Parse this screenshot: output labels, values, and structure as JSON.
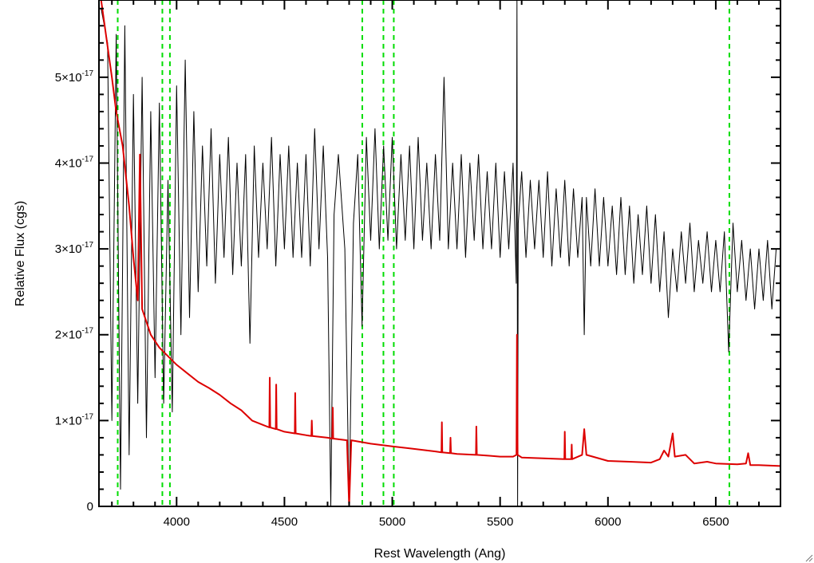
{
  "chart_data": {
    "type": "line",
    "xlabel": "Rest Wavelength (Ang)",
    "ylabel": "Relative Flux (cgs)",
    "xlim": [
      3640,
      6800
    ],
    "ylim": [
      0,
      5.9e-17
    ],
    "x_ticks": [
      {
        "value": 4000,
        "label": "4000"
      },
      {
        "value": 4500,
        "label": "4500"
      },
      {
        "value": 5000,
        "label": "5000"
      },
      {
        "value": 5500,
        "label": "5500"
      },
      {
        "value": 6000,
        "label": "6000"
      },
      {
        "value": 6500,
        "label": "6500"
      }
    ],
    "y_ticks": [
      {
        "value": 0,
        "mantissa": "0",
        "exponent": ""
      },
      {
        "value": 1e-17,
        "mantissa": "1×10",
        "exponent": "-17"
      },
      {
        "value": 2e-17,
        "mantissa": "2×10",
        "exponent": "-17"
      },
      {
        "value": 3e-17,
        "mantissa": "3×10",
        "exponent": "-17"
      },
      {
        "value": 4e-17,
        "mantissa": "4×10",
        "exponent": "-17"
      },
      {
        "value": 5e-17,
        "mantissa": "5×10",
        "exponent": "-17"
      }
    ],
    "reference_lines": {
      "color": "#00dd00",
      "style": "dashed",
      "x": [
        3727,
        3934,
        3969,
        4861,
        4959,
        5007,
        6563
      ]
    },
    "series": [
      {
        "color": "#000000",
        "points": [
          [
            3650,
            5.8e-17
          ],
          [
            3680,
            5.4e-17
          ],
          [
            3700,
            1e-17
          ],
          [
            3720,
            5.5e-17
          ],
          [
            3740,
            2e-18
          ],
          [
            3760,
            5.6e-17
          ],
          [
            3780,
            6e-18
          ],
          [
            3800,
            4.8e-17
          ],
          [
            3820,
            1.2e-17
          ],
          [
            3840,
            5e-17
          ],
          [
            3860,
            8e-18
          ],
          [
            3880,
            4.6e-17
          ],
          [
            3900,
            1.5e-17
          ],
          [
            3920,
            4.7e-17
          ],
          [
            3940,
            1.2e-17
          ],
          [
            3960,
            3.8e-17
          ],
          [
            3980,
            1.1e-17
          ],
          [
            4000,
            4.9e-17
          ],
          [
            4020,
            2e-17
          ],
          [
            4040,
            5.2e-17
          ],
          [
            4060,
            2.2e-17
          ],
          [
            4080,
            4.6e-17
          ],
          [
            4100,
            2.5e-17
          ],
          [
            4120,
            4.2e-17
          ],
          [
            4140,
            2.8e-17
          ],
          [
            4160,
            4.4e-17
          ],
          [
            4180,
            2.6e-17
          ],
          [
            4200,
            4.1e-17
          ],
          [
            4220,
            2.9e-17
          ],
          [
            4240,
            4.3e-17
          ],
          [
            4260,
            2.7e-17
          ],
          [
            4280,
            4e-17
          ],
          [
            4300,
            2.8e-17
          ],
          [
            4320,
            4.1e-17
          ],
          [
            4340,
            1.9e-17
          ],
          [
            4360,
            4.2e-17
          ],
          [
            4380,
            2.9e-17
          ],
          [
            4400,
            4e-17
          ],
          [
            4420,
            3e-17
          ],
          [
            4440,
            4.3e-17
          ],
          [
            4460,
            2.8e-17
          ],
          [
            4480,
            4.1e-17
          ],
          [
            4500,
            3e-17
          ],
          [
            4520,
            4.2e-17
          ],
          [
            4540,
            2.9e-17
          ],
          [
            4560,
            4e-17
          ],
          [
            4580,
            2.9e-17
          ],
          [
            4600,
            4.1e-17
          ],
          [
            4620,
            2.8e-17
          ],
          [
            4640,
            4.4e-17
          ],
          [
            4660,
            3e-17
          ],
          [
            4680,
            4.2e-17
          ],
          [
            4700,
            2.9e-17
          ],
          [
            4715,
            0.0
          ],
          [
            4730,
            3.4e-17
          ],
          [
            4750,
            4.1e-17
          ],
          [
            4780,
            3e-17
          ],
          [
            4800,
            0.0
          ],
          [
            4820,
            3.3e-17
          ],
          [
            4840,
            4.1e-17
          ],
          [
            4860,
            2.1e-17
          ],
          [
            4880,
            4.3e-17
          ],
          [
            4900,
            3.1e-17
          ],
          [
            4920,
            4.4e-17
          ],
          [
            4940,
            3e-17
          ],
          [
            4960,
            4.2e-17
          ],
          [
            4980,
            3.1e-17
          ],
          [
            5000,
            4.3e-17
          ],
          [
            5020,
            3e-17
          ],
          [
            5040,
            4.1e-17
          ],
          [
            5060,
            3.1e-17
          ],
          [
            5080,
            4.2e-17
          ],
          [
            5100,
            3e-17
          ],
          [
            5120,
            4.3e-17
          ],
          [
            5140,
            3.1e-17
          ],
          [
            5160,
            4e-17
          ],
          [
            5180,
            3e-17
          ],
          [
            5200,
            4.1e-17
          ],
          [
            5220,
            3.1e-17
          ],
          [
            5240,
            5e-17
          ],
          [
            5260,
            3e-17
          ],
          [
            5280,
            4e-17
          ],
          [
            5300,
            3e-17
          ],
          [
            5320,
            4.1e-17
          ],
          [
            5340,
            2.9e-17
          ],
          [
            5360,
            4e-17
          ],
          [
            5380,
            3.1e-17
          ],
          [
            5400,
            4.1e-17
          ],
          [
            5420,
            3e-17
          ],
          [
            5440,
            3.9e-17
          ],
          [
            5460,
            3e-17
          ],
          [
            5480,
            4e-17
          ],
          [
            5500,
            2.9e-17
          ],
          [
            5520,
            3.9e-17
          ],
          [
            5540,
            3e-17
          ],
          [
            5560,
            4e-17
          ],
          [
            5575,
            2.6e-17
          ],
          [
            5578,
            5.9e-17
          ],
          [
            5581,
            0.0
          ],
          [
            5584,
            3.3e-17
          ],
          [
            5600,
            3.9e-17
          ],
          [
            5620,
            2.9e-17
          ],
          [
            5640,
            3.8e-17
          ],
          [
            5660,
            3e-17
          ],
          [
            5680,
            3.8e-17
          ],
          [
            5700,
            2.9e-17
          ],
          [
            5720,
            3.9e-17
          ],
          [
            5740,
            2.8e-17
          ],
          [
            5760,
            3.7e-17
          ],
          [
            5780,
            2.9e-17
          ],
          [
            5800,
            3.8e-17
          ],
          [
            5820,
            2.8e-17
          ],
          [
            5840,
            3.7e-17
          ],
          [
            5860,
            2.9e-17
          ],
          [
            5880,
            3.6e-17
          ],
          [
            5890,
            2e-17
          ],
          [
            5900,
            3.6e-17
          ],
          [
            5920,
            2.8e-17
          ],
          [
            5940,
            3.7e-17
          ],
          [
            5960,
            2.8e-17
          ],
          [
            5980,
            3.6e-17
          ],
          [
            6000,
            2.8e-17
          ],
          [
            6020,
            3.5e-17
          ],
          [
            6040,
            2.7e-17
          ],
          [
            6060,
            3.6e-17
          ],
          [
            6080,
            2.7e-17
          ],
          [
            6100,
            3.5e-17
          ],
          [
            6120,
            2.6e-17
          ],
          [
            6140,
            3.4e-17
          ],
          [
            6160,
            2.7e-17
          ],
          [
            6180,
            3.5e-17
          ],
          [
            6200,
            2.6e-17
          ],
          [
            6220,
            3.4e-17
          ],
          [
            6240,
            2.5e-17
          ],
          [
            6260,
            3.2e-17
          ],
          [
            6280,
            2.2e-17
          ],
          [
            6300,
            3e-17
          ],
          [
            6320,
            2.5e-17
          ],
          [
            6340,
            3.2e-17
          ],
          [
            6360,
            2.6e-17
          ],
          [
            6380,
            3.3e-17
          ],
          [
            6400,
            2.5e-17
          ],
          [
            6420,
            3.1e-17
          ],
          [
            6440,
            2.6e-17
          ],
          [
            6460,
            3.2e-17
          ],
          [
            6480,
            2.5e-17
          ],
          [
            6500,
            3.1e-17
          ],
          [
            6520,
            2.5e-17
          ],
          [
            6540,
            3.2e-17
          ],
          [
            6560,
            1.8e-17
          ],
          [
            6580,
            3.3e-17
          ],
          [
            6600,
            2.5e-17
          ],
          [
            6620,
            3.1e-17
          ],
          [
            6640,
            2.4e-17
          ],
          [
            6660,
            3e-17
          ],
          [
            6680,
            2.3e-17
          ],
          [
            6700,
            3e-17
          ],
          [
            6720,
            2.4e-17
          ],
          [
            6740,
            3.1e-17
          ],
          [
            6760,
            2.3e-17
          ],
          [
            6780,
            3e-17
          ]
        ]
      },
      {
        "color": "#dd0000",
        "points": [
          [
            3650,
            5.9e-17
          ],
          [
            3700,
            5e-17
          ],
          [
            3720,
            4.6e-17
          ],
          [
            3750,
            4.2e-17
          ],
          [
            3780,
            3.5e-17
          ],
          [
            3800,
            2.9e-17
          ],
          [
            3820,
            2.4e-17
          ],
          [
            3830,
            4.1e-17
          ],
          [
            3840,
            2.3e-17
          ],
          [
            3880,
            2e-17
          ],
          [
            3920,
            1.85e-17
          ],
          [
            3960,
            1.75e-17
          ],
          [
            4000,
            1.65e-17
          ],
          [
            4050,
            1.55e-17
          ],
          [
            4100,
            1.45e-17
          ],
          [
            4150,
            1.38e-17
          ],
          [
            4200,
            1.3e-17
          ],
          [
            4250,
            1.2e-17
          ],
          [
            4300,
            1.12e-17
          ],
          [
            4350,
            1e-17
          ],
          [
            4400,
            9.5e-18
          ],
          [
            4430,
            9.2e-18
          ],
          [
            4432,
            1.5e-17
          ],
          [
            4434,
            9.2e-18
          ],
          [
            4460,
            9e-18
          ],
          [
            4462,
            1.42e-17
          ],
          [
            4464,
            9e-18
          ],
          [
            4500,
            8.7e-18
          ],
          [
            4548,
            8.5e-18
          ],
          [
            4550,
            1.32e-17
          ],
          [
            4552,
            8.5e-18
          ],
          [
            4600,
            8.3e-18
          ],
          [
            4625,
            8.2e-18
          ],
          [
            4627,
            1e-17
          ],
          [
            4629,
            8.2e-18
          ],
          [
            4700,
            8e-18
          ],
          [
            4722,
            7.9e-18
          ],
          [
            4724,
            1.15e-17
          ],
          [
            4726,
            7.9e-18
          ],
          [
            4790,
            7.7e-18
          ],
          [
            4800,
            0.0
          ],
          [
            4810,
            7.7e-18
          ],
          [
            4900,
            7.3e-18
          ],
          [
            5000,
            7e-18
          ],
          [
            5100,
            6.7e-18
          ],
          [
            5200,
            6.4e-18
          ],
          [
            5228,
            6.3e-18
          ],
          [
            5230,
            9.8e-18
          ],
          [
            5232,
            6.3e-18
          ],
          [
            5268,
            6.2e-18
          ],
          [
            5270,
            8e-18
          ],
          [
            5272,
            6.2e-18
          ],
          [
            5300,
            6.1e-18
          ],
          [
            5388,
            6e-18
          ],
          [
            5390,
            9.3e-18
          ],
          [
            5392,
            6e-18
          ],
          [
            5450,
            5.9e-18
          ],
          [
            5500,
            5.8e-18
          ],
          [
            5560,
            5.8e-18
          ],
          [
            5576,
            6e-18
          ],
          [
            5578,
            2e-17
          ],
          [
            5581,
            6e-18
          ],
          [
            5600,
            5.7e-18
          ],
          [
            5700,
            5.6e-18
          ],
          [
            5798,
            5.5e-18
          ],
          [
            5800,
            8.7e-18
          ],
          [
            5802,
            5.5e-18
          ],
          [
            5830,
            5.5e-18
          ],
          [
            5832,
            7.2e-18
          ],
          [
            5834,
            5.5e-18
          ],
          [
            5880,
            6e-18
          ],
          [
            5890,
            9e-18
          ],
          [
            5900,
            6e-18
          ],
          [
            6000,
            5.3e-18
          ],
          [
            6100,
            5.2e-18
          ],
          [
            6200,
            5.1e-18
          ],
          [
            6240,
            5.5e-18
          ],
          [
            6260,
            6.5e-18
          ],
          [
            6280,
            5.8e-18
          ],
          [
            6300,
            8.5e-18
          ],
          [
            6310,
            5.8e-18
          ],
          [
            6360,
            6e-18
          ],
          [
            6400,
            5e-18
          ],
          [
            6460,
            5.2e-18
          ],
          [
            6500,
            5e-18
          ],
          [
            6600,
            4.9e-18
          ],
          [
            6640,
            5e-18
          ],
          [
            6650,
            6.2e-18
          ],
          [
            6660,
            4.8e-18
          ],
          [
            6700,
            4.8e-18
          ],
          [
            6800,
            4.7e-18
          ]
        ]
      }
    ]
  }
}
